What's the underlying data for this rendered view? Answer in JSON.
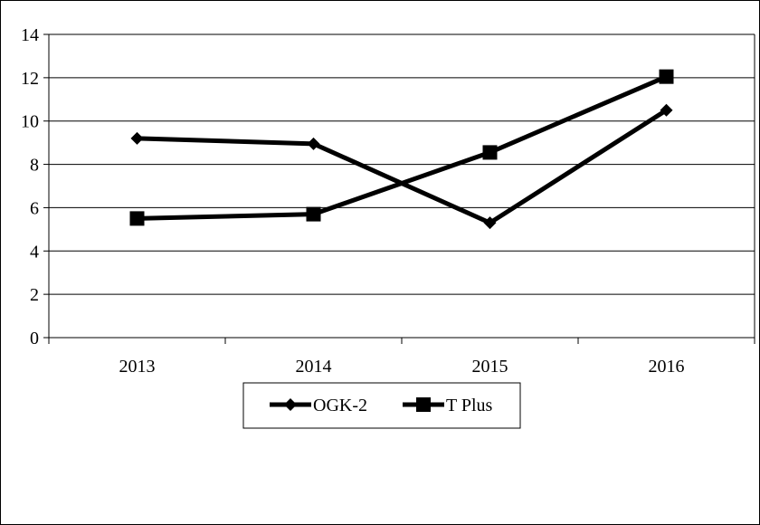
{
  "chart_data": {
    "type": "line",
    "title": "",
    "xlabel": "",
    "ylabel": "",
    "categories": [
      "2013",
      "2014",
      "2015",
      "2016"
    ],
    "ylim": [
      0,
      14
    ],
    "yticks": [
      0,
      2,
      4,
      6,
      8,
      10,
      12,
      14
    ],
    "grid": "horizontal",
    "legend_position": "bottom",
    "series": [
      {
        "name": "OGK-2",
        "marker": "diamond",
        "color": "#000000",
        "values": [
          9.2,
          8.95,
          5.3,
          10.5
        ]
      },
      {
        "name": "T Plus",
        "marker": "square",
        "color": "#000000",
        "values": [
          5.5,
          5.7,
          8.55,
          12.05
        ]
      }
    ]
  }
}
